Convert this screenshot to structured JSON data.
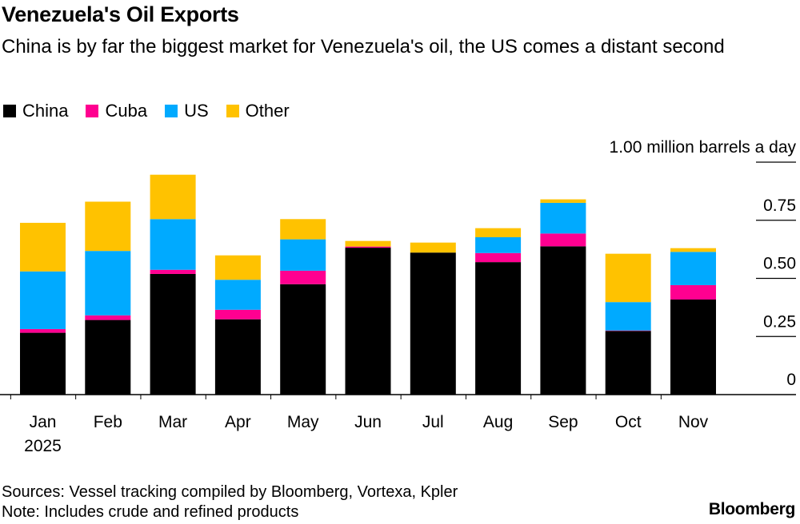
{
  "title": "Venezuela's Oil Exports",
  "subtitle": "China is by far the biggest market for Venezuela's oil, the US comes a distant second",
  "footer": {
    "sources": "Sources: Vessel tracking compiled by Bloomberg, Vortexa, Kpler",
    "note": "Note: Includes crude and refined products",
    "logo": "Bloomberg"
  },
  "chart_data": {
    "type": "bar",
    "stacked": true,
    "categories": [
      "Jan",
      "Feb",
      "Mar",
      "Apr",
      "May",
      "Jun",
      "Jul",
      "Aug",
      "Sep",
      "Oct",
      "Nov"
    ],
    "category_sublabels": [
      "2025",
      "",
      "",
      "",
      "",
      "",
      "",
      "",
      "",
      "",
      ""
    ],
    "series": [
      {
        "name": "China",
        "color": "#000000",
        "values": [
          0.266,
          0.321,
          0.519,
          0.324,
          0.475,
          0.632,
          0.611,
          0.57,
          0.638,
          0.274,
          0.409
        ]
      },
      {
        "name": "Cuba",
        "color": "#ff0090",
        "values": [
          0.016,
          0.02,
          0.018,
          0.041,
          0.058,
          0.005,
          0.0,
          0.039,
          0.055,
          0.002,
          0.062
        ]
      },
      {
        "name": "US",
        "color": "#00aaff",
        "values": [
          0.248,
          0.277,
          0.218,
          0.129,
          0.135,
          0.0,
          0.0,
          0.068,
          0.132,
          0.122,
          0.143
        ]
      },
      {
        "name": "Other",
        "color": "#ffc200",
        "values": [
          0.209,
          0.212,
          0.191,
          0.105,
          0.087,
          0.024,
          0.043,
          0.039,
          0.015,
          0.208,
          0.016
        ]
      }
    ],
    "ylabel": "million barrels a day",
    "ylim": [
      0,
      1.0
    ],
    "yticks": [
      0,
      0.25,
      0.5,
      0.75,
      1.0
    ],
    "ytick_labels": [
      "0",
      "0.25",
      "0.50",
      "0.75",
      "1.00 million barrels a day"
    ],
    "grid": true,
    "legend_position": "top-left"
  }
}
